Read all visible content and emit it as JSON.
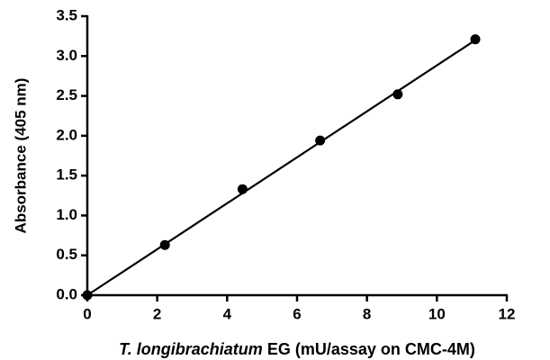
{
  "chart_data": {
    "type": "scatter",
    "x_label_italic": "T. longibrachiatum",
    "x_label": "EG (mU/assay on CMC-4M)",
    "y_label": "Absorbance (405 nm)",
    "x": [
      0,
      2.22,
      4.44,
      6.66,
      8.88,
      11.1
    ],
    "values": [
      0,
      0.63,
      1.33,
      1.94,
      2.52,
      3.21
    ],
    "color": "#000000",
    "fit_line": {
      "x": [
        0,
        11.1
      ],
      "values": [
        0,
        3.2
      ],
      "color": "#000000"
    },
    "xlim": [
      0,
      12
    ],
    "xticks": [
      0,
      2,
      4,
      6,
      8,
      10,
      12
    ],
    "ylim": [
      0,
      3.5
    ],
    "yticks": [
      {
        "value": 0,
        "label": "0.0"
      },
      0.5,
      {
        "value": 1,
        "label": "1.0"
      },
      1.5,
      {
        "value": 2,
        "label": "2.0"
      },
      2.5,
      {
        "value": 3,
        "label": "3.0"
      },
      3.5
    ],
    "grid": false
  }
}
